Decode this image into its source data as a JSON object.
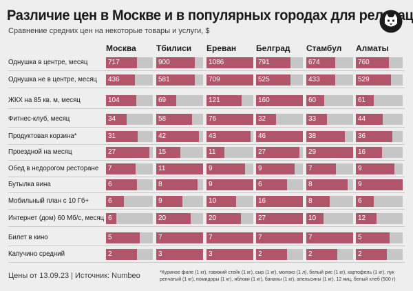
{
  "header": {
    "title": "Различие цен в Москве и в популярных городах для релокации",
    "subtitle": "Сравнение средних цен на некоторые товары и услуги, $"
  },
  "footer": {
    "source": "Цены от 13.09.23 | Источник: Numbeo",
    "footnote": "*Куриное филе (1 кг), говяжий стейк (1 кг), сыр (1 кг), молоко (1 л), белый рис (1 кг), картофель (1 кг), лук репчатый (1 кг), помидоры (1 кг), яблоки (1 кг), бананы (1 кг), апельсины (1 кг), 12 яиц, белый хлеб (500 г)"
  },
  "colors": {
    "bar_fill": "#b0556a",
    "bar_track": "#c6c6c6",
    "background": "#eeeeee"
  },
  "logo_icon": "cat-head-icon",
  "chart_data": {
    "type": "table",
    "cities": [
      "Москва",
      "Тбилиси",
      "Ереван",
      "Белград",
      "Стамбул",
      "Алматы"
    ],
    "rows": [
      {
        "label": "Однушка в центре, месяц",
        "values": [
          717,
          900,
          1086,
          791,
          674,
          760
        ]
      },
      {
        "label": "Однушка не в центре, месяц",
        "values": [
          436,
          581,
          709,
          525,
          433,
          529
        ]
      },
      {
        "label": "ЖКХ на 85 кв. м, месяц",
        "values": [
          104,
          69,
          121,
          160,
          60,
          61
        ]
      },
      {
        "label": "Фитнес-клуб, месяц",
        "values": [
          34,
          58,
          76,
          32,
          33,
          44
        ]
      },
      {
        "label": "Продуктовая корзина*",
        "values": [
          31,
          42,
          43,
          46,
          38,
          36
        ]
      },
      {
        "label": "Проездной на месяц",
        "values": [
          27,
          15,
          11,
          27,
          29,
          16
        ]
      },
      {
        "label": "Обед в недорогом ресторане",
        "values": [
          7,
          11,
          9,
          9,
          7,
          9
        ]
      },
      {
        "label": "Бутылка вина",
        "values": [
          6,
          8,
          9,
          6,
          8,
          9
        ]
      },
      {
        "label": "Мобильный план с 10 Гб+",
        "values": [
          6,
          9,
          10,
          16,
          8,
          6
        ]
      },
      {
        "label": "Интернет (дом) 60 Мб/с, месяц",
        "values": [
          6,
          20,
          20,
          27,
          10,
          12
        ]
      },
      {
        "label": "Билет в кино",
        "values": [
          5,
          7,
          7,
          7,
          7,
          5
        ]
      },
      {
        "label": "Капучино средний",
        "values": [
          2,
          3,
          3,
          2,
          2,
          2
        ]
      }
    ]
  }
}
